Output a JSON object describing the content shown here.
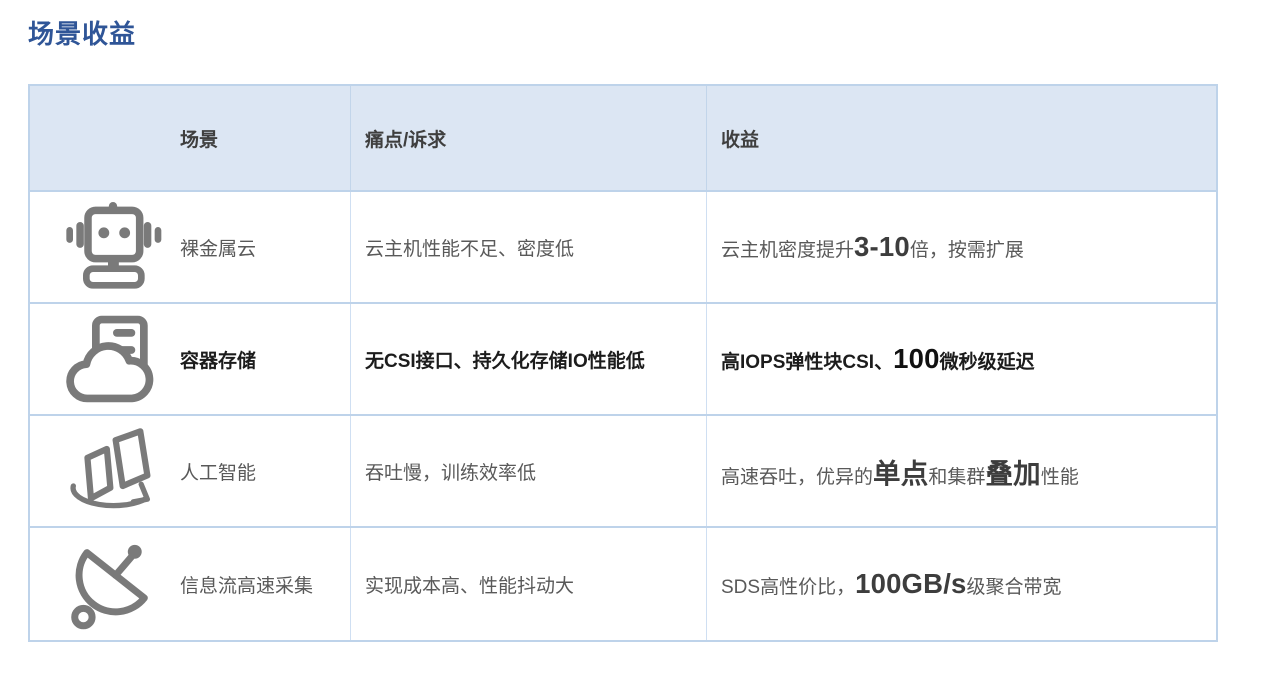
{
  "page": {
    "title": "场景收益"
  },
  "colors": {
    "title": "#2f5597",
    "header_bg": "#dce6f3",
    "border": "#bed3ea",
    "border_light": "#cfdff2",
    "icon": "#7a7a7a",
    "text": "#595959",
    "text_emph": "#1c1c1c",
    "text_big": "#3d3d3d"
  },
  "table": {
    "headers": [
      {
        "label": "场景"
      },
      {
        "label": "痛点/诉求"
      },
      {
        "label": "收益"
      }
    ],
    "rows": [
      {
        "icon": "robot-icon",
        "scenario": "裸金属云",
        "pain": "云主机性能不足、密度低",
        "benefit_segments": [
          {
            "text": "云主机密度提升"
          },
          {
            "text": "3-10",
            "strong": true
          },
          {
            "text": "倍，按需扩展"
          }
        ],
        "emphasized": false
      },
      {
        "icon": "cloud-server-icon",
        "scenario": "容器存储",
        "pain": "无CSI接口、持久化存储IO性能低",
        "benefit_segments": [
          {
            "text": "高IOPS弹性块CSI、"
          },
          {
            "text": "100",
            "strong": true
          },
          {
            "text": "微秒级延迟"
          }
        ],
        "emphasized": true
      },
      {
        "icon": "ai-flow-icon",
        "scenario": "人工智能",
        "pain": "吞吐慢，训练效率低",
        "benefit_segments": [
          {
            "text": "高速吞吐，优异的"
          },
          {
            "text": "单点",
            "strong": true
          },
          {
            "text": "和集群"
          },
          {
            "text": "叠加",
            "strong": true
          },
          {
            "text": "性能"
          }
        ],
        "emphasized": false
      },
      {
        "icon": "satellite-dish-icon",
        "scenario": "信息流高速采集",
        "pain": "实现成本高、性能抖动大",
        "benefit_segments": [
          {
            "text": "SDS高性价比，"
          },
          {
            "text": "100GB/s",
            "strong": true
          },
          {
            "text": "级聚合带宽"
          }
        ],
        "emphasized": false
      }
    ]
  }
}
